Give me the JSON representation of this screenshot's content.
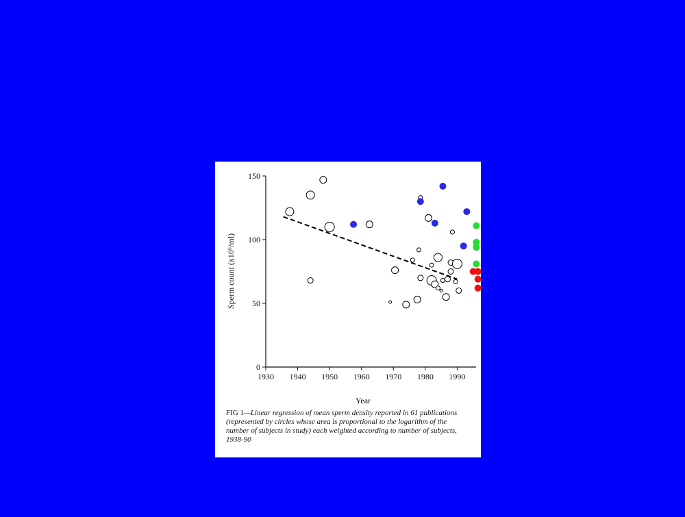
{
  "chart_data": {
    "type": "scatter",
    "x_label": "Year",
    "y_label": "Sperm count (x10⁶/ml)",
    "fig_label": "FIG 1",
    "caption": "—Linear regression of mean sperm density reported in 61 publications (represented by circles whose area is proportional to the logarithm of the number of subjects in study) each weighted according to number of subjects, 1938-90",
    "xlim": [
      1930,
      1997
    ],
    "xticks": [
      1930,
      1940,
      1950,
      1960,
      1970,
      1980,
      1990
    ],
    "ylim": [
      0,
      150
    ],
    "yticks": [
      0,
      50,
      100,
      150
    ],
    "series": [
      {
        "color": "#000000",
        "filled": false,
        "x": [
          1937.5,
          1944,
          1944,
          1948,
          1950,
          1962.5,
          1969,
          1970.5,
          1974,
          1976,
          1977.5,
          1978,
          1978.5,
          1978.5,
          1981,
          1982,
          1982,
          1983,
          1984,
          1984,
          1985,
          1985.5,
          1986.5,
          1987,
          1988,
          1988,
          1988.5,
          1989.5,
          1990,
          1990.5
        ],
        "values": [
          122,
          68,
          135,
          147,
          110,
          112,
          51,
          76,
          49,
          84,
          53,
          92,
          70,
          133,
          117,
          68,
          80,
          65,
          86,
          62,
          60,
          68,
          55,
          69,
          82,
          75,
          106,
          67,
          81,
          60
        ],
        "sizes": [
          6,
          4,
          6,
          5,
          7,
          5,
          2,
          5,
          5,
          3,
          5,
          3,
          4,
          3,
          5,
          7,
          3,
          5,
          6,
          3,
          2,
          3,
          5,
          4,
          4,
          4,
          3,
          3,
          7,
          4
        ]
      },
      {
        "color": "#2a2ae8",
        "filled": true,
        "x": [
          1957.5,
          1978.5,
          1983,
          1985.5,
          1993,
          1992
        ],
        "values": [
          112,
          130,
          113,
          142,
          122,
          95
        ],
        "sizes": [
          5,
          5,
          5,
          5,
          5,
          5
        ]
      },
      {
        "color": "#22dd33",
        "filled": true,
        "x": [
          1996,
          1996,
          1996,
          1996
        ],
        "values": [
          111,
          98,
          94,
          81
        ],
        "sizes": [
          5,
          5,
          5,
          5
        ]
      },
      {
        "color": "#ee1111",
        "filled": true,
        "x": [
          1995,
          1996.5,
          1996.5,
          1996.5
        ],
        "values": [
          75,
          75,
          69,
          62
        ],
        "sizes": [
          5,
          5,
          5,
          5
        ]
      },
      {
        "color": "#000000",
        "line": true,
        "dashed": true,
        "x": [
          1935.5,
          1990
        ],
        "values": [
          118,
          69
        ]
      }
    ]
  }
}
